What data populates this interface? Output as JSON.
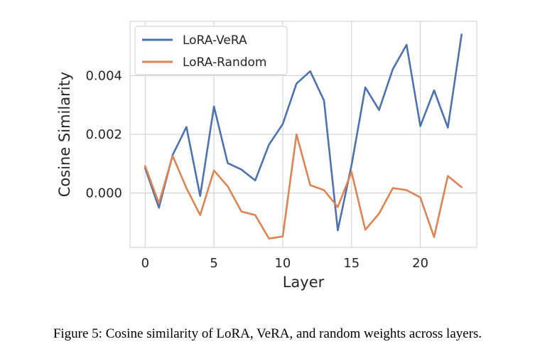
{
  "chart_data": {
    "type": "line",
    "xlabel": "Layer",
    "ylabel": "Cosine Similarity",
    "xlim": [
      -1.1,
      24.1
    ],
    "ylim": [
      -0.00185,
      0.00585
    ],
    "xticks": [
      0,
      5,
      10,
      15,
      20
    ],
    "xtick_labels": [
      "0",
      "5",
      "10",
      "15",
      "20"
    ],
    "yticks": [
      0.0,
      0.002,
      0.004
    ],
    "ytick_labels": [
      "0.000",
      "0.002",
      "0.004"
    ],
    "grid": true,
    "legend_position": "top-left",
    "x": [
      0,
      1,
      2,
      3,
      4,
      5,
      6,
      7,
      8,
      9,
      10,
      11,
      12,
      13,
      14,
      15,
      16,
      17,
      18,
      19,
      20,
      21,
      22,
      23
    ],
    "series": [
      {
        "name": "LoRA-VeRA",
        "color": "#4c72b0",
        "values": [
          0.00085,
          -0.0005,
          0.0013,
          0.00225,
          -0.0001,
          0.00295,
          0.00102,
          0.0008,
          0.00043,
          0.00165,
          0.00235,
          0.00373,
          0.00415,
          0.00315,
          -0.00127,
          0.00095,
          0.0036,
          0.00283,
          0.00422,
          0.00505,
          0.00228,
          0.0035,
          0.00223,
          0.0054
        ]
      },
      {
        "name": "LoRA-Random",
        "color": "#dd8452",
        "values": [
          0.00092,
          -0.00035,
          0.00127,
          0.00017,
          -0.00075,
          0.00077,
          0.00023,
          -0.00063,
          -0.00075,
          -0.00155,
          -0.00148,
          0.002,
          0.00027,
          0.0001,
          -0.00048,
          0.00072,
          -0.00125,
          -0.0007,
          0.00017,
          0.0001,
          -0.00015,
          -0.0015,
          0.00058,
          0.0002
        ]
      }
    ]
  },
  "caption": "Figure 5: Cosine similarity of LoRA, VeRA, and random weights across layers."
}
